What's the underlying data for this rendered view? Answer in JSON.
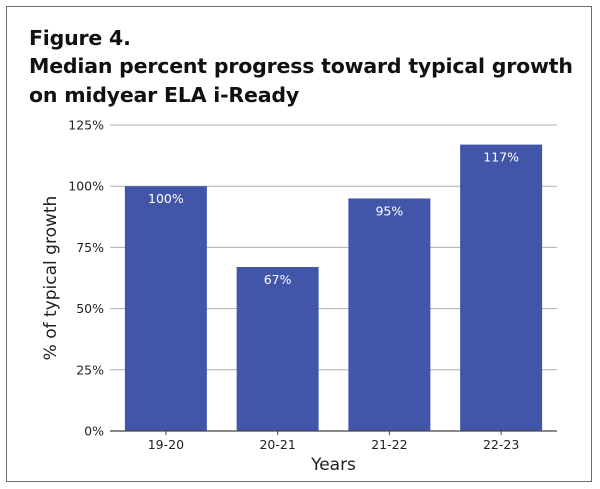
{
  "figure": {
    "label": "Figure 4.",
    "title": "Median percent progress toward typical growth on midyear ELA i-Ready"
  },
  "colors": {
    "bar": "#4256a9",
    "gridline": "#b0b0b0",
    "axis": "#444444",
    "text": "#222222"
  },
  "chart_data": {
    "type": "bar",
    "title": "Median percent progress toward typical growth on midyear ELA i-Ready",
    "xlabel": "Years",
    "ylabel": "% of typical growth",
    "categories": [
      "19-20",
      "20-21",
      "21-22",
      "22-23"
    ],
    "values": [
      100,
      67,
      95,
      117
    ],
    "data_labels": [
      "100%",
      "67%",
      "95%",
      "117%"
    ],
    "ylim": [
      0,
      125
    ],
    "yticks": [
      0,
      25,
      50,
      75,
      100,
      125
    ],
    "ytick_labels": [
      "0%",
      "25%",
      "50%",
      "75%",
      "100%",
      "125%"
    ],
    "grid": true,
    "legend": "none"
  }
}
